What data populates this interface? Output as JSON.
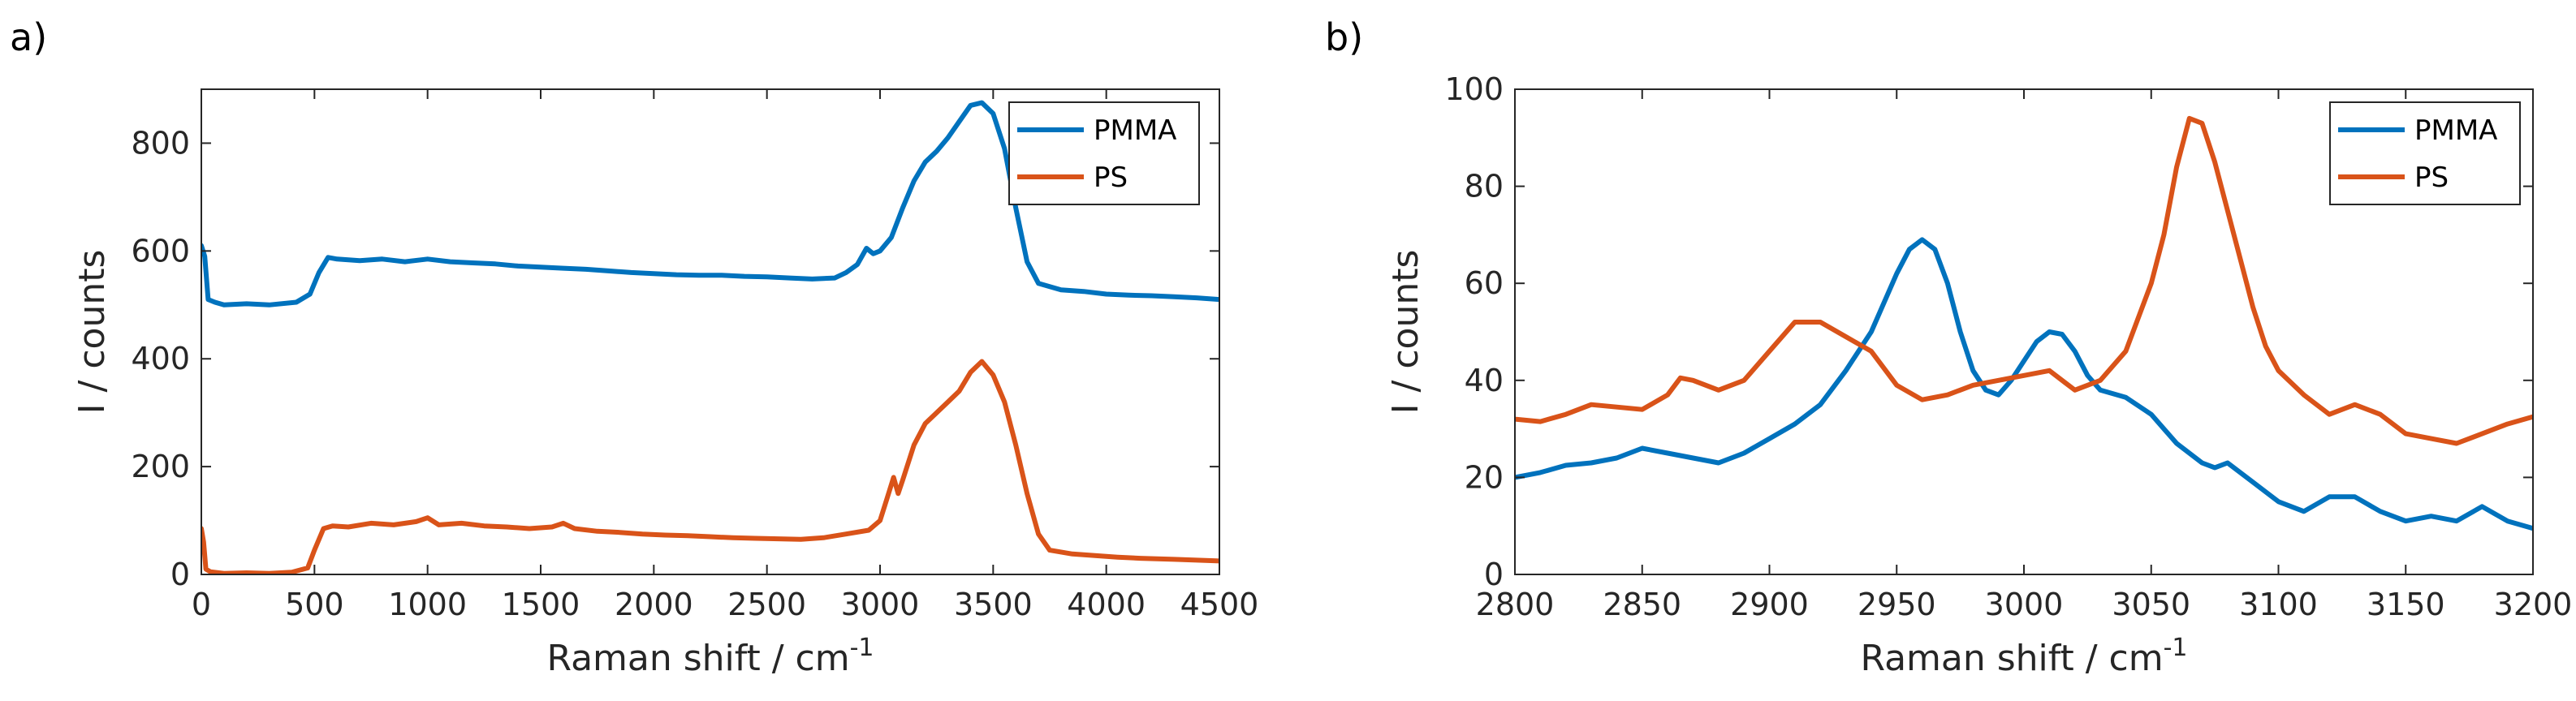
{
  "chart_data": [
    {
      "panel_label": "a)",
      "type": "line",
      "xlabel": "Raman shift / cm",
      "xlabel_sup": "-1",
      "ylabel": "I / counts",
      "xlim": [
        0,
        4500
      ],
      "ylim": [
        0,
        900
      ],
      "xticks": [
        0,
        500,
        1000,
        1500,
        2000,
        2500,
        3000,
        3500,
        4000,
        4500
      ],
      "yticks": [
        0,
        200,
        400,
        600,
        800
      ],
      "legend_position": "top-right",
      "series": [
        {
          "name": "PMMA",
          "color": "#0072BD",
          "points": [
            [
              0,
              610
            ],
            [
              15,
              590
            ],
            [
              30,
              510
            ],
            [
              60,
              505
            ],
            [
              100,
              500
            ],
            [
              200,
              502
            ],
            [
              300,
              500
            ],
            [
              420,
              505
            ],
            [
              480,
              520
            ],
            [
              520,
              560
            ],
            [
              560,
              588
            ],
            [
              600,
              585
            ],
            [
              700,
              582
            ],
            [
              800,
              585
            ],
            [
              900,
              580
            ],
            [
              1000,
              585
            ],
            [
              1100,
              580
            ],
            [
              1200,
              578
            ],
            [
              1300,
              576
            ],
            [
              1400,
              572
            ],
            [
              1500,
              570
            ],
            [
              1600,
              568
            ],
            [
              1700,
              566
            ],
            [
              1800,
              563
            ],
            [
              1900,
              560
            ],
            [
              2000,
              558
            ],
            [
              2100,
              556
            ],
            [
              2200,
              555
            ],
            [
              2300,
              555
            ],
            [
              2400,
              553
            ],
            [
              2500,
              552
            ],
            [
              2600,
              550
            ],
            [
              2700,
              548
            ],
            [
              2800,
              550
            ],
            [
              2850,
              560
            ],
            [
              2900,
              575
            ],
            [
              2940,
              605
            ],
            [
              2970,
              595
            ],
            [
              3000,
              600
            ],
            [
              3050,
              625
            ],
            [
              3100,
              680
            ],
            [
              3150,
              730
            ],
            [
              3200,
              765
            ],
            [
              3250,
              785
            ],
            [
              3300,
              810
            ],
            [
              3350,
              840
            ],
            [
              3400,
              870
            ],
            [
              3450,
              875
            ],
            [
              3500,
              855
            ],
            [
              3550,
              790
            ],
            [
              3600,
              680
            ],
            [
              3650,
              580
            ],
            [
              3700,
              540
            ],
            [
              3800,
              528
            ],
            [
              3900,
              525
            ],
            [
              4000,
              520
            ],
            [
              4100,
              518
            ],
            [
              4200,
              517
            ],
            [
              4300,
              515
            ],
            [
              4400,
              513
            ],
            [
              4500,
              510
            ]
          ]
        },
        {
          "name": "PS",
          "color": "#D95319",
          "points": [
            [
              0,
              85
            ],
            [
              10,
              60
            ],
            [
              20,
              10
            ],
            [
              40,
              5
            ],
            [
              100,
              2
            ],
            [
              200,
              3
            ],
            [
              300,
              2
            ],
            [
              400,
              4
            ],
            [
              470,
              12
            ],
            [
              500,
              45
            ],
            [
              540,
              85
            ],
            [
              580,
              90
            ],
            [
              650,
              88
            ],
            [
              750,
              95
            ],
            [
              850,
              92
            ],
            [
              950,
              98
            ],
            [
              1000,
              105
            ],
            [
              1050,
              92
            ],
            [
              1150,
              95
            ],
            [
              1250,
              90
            ],
            [
              1350,
              88
            ],
            [
              1450,
              85
            ],
            [
              1550,
              88
            ],
            [
              1600,
              95
            ],
            [
              1650,
              85
            ],
            [
              1750,
              80
            ],
            [
              1850,
              78
            ],
            [
              1950,
              75
            ],
            [
              2050,
              73
            ],
            [
              2150,
              72
            ],
            [
              2250,
              70
            ],
            [
              2350,
              68
            ],
            [
              2450,
              67
            ],
            [
              2550,
              66
            ],
            [
              2650,
              65
            ],
            [
              2750,
              68
            ],
            [
              2850,
              75
            ],
            [
              2950,
              82
            ],
            [
              3000,
              100
            ],
            [
              3030,
              140
            ],
            [
              3060,
              180
            ],
            [
              3080,
              150
            ],
            [
              3100,
              175
            ],
            [
              3150,
              240
            ],
            [
              3200,
              280
            ],
            [
              3250,
              300
            ],
            [
              3300,
              320
            ],
            [
              3350,
              340
            ],
            [
              3400,
              375
            ],
            [
              3450,
              395
            ],
            [
              3500,
              370
            ],
            [
              3550,
              320
            ],
            [
              3600,
              240
            ],
            [
              3650,
              150
            ],
            [
              3700,
              75
            ],
            [
              3750,
              45
            ],
            [
              3850,
              38
            ],
            [
              3950,
              35
            ],
            [
              4050,
              32
            ],
            [
              4150,
              30
            ],
            [
              4300,
              28
            ],
            [
              4500,
              25
            ]
          ]
        }
      ]
    },
    {
      "panel_label": "b)",
      "type": "line",
      "xlabel": "Raman shift / cm",
      "xlabel_sup": "-1",
      "ylabel": "I / counts",
      "xlim": [
        2800,
        3200
      ],
      "ylim": [
        0,
        100
      ],
      "xticks": [
        2800,
        2850,
        2900,
        2950,
        3000,
        3050,
        3100,
        3150,
        3200
      ],
      "yticks": [
        0,
        20,
        40,
        60,
        80,
        100
      ],
      "legend_position": "top-right",
      "series": [
        {
          "name": "PMMA",
          "color": "#0072BD",
          "points": [
            [
              2800,
              20
            ],
            [
              2810,
              21
            ],
            [
              2820,
              22.5
            ],
            [
              2830,
              23
            ],
            [
              2840,
              24
            ],
            [
              2850,
              26
            ],
            [
              2860,
              25
            ],
            [
              2870,
              24
            ],
            [
              2880,
              23
            ],
            [
              2890,
              25
            ],
            [
              2900,
              28
            ],
            [
              2910,
              31
            ],
            [
              2920,
              35
            ],
            [
              2930,
              42
            ],
            [
              2940,
              50
            ],
            [
              2950,
              62
            ],
            [
              2955,
              67
            ],
            [
              2960,
              69
            ],
            [
              2965,
              67
            ],
            [
              2970,
              60
            ],
            [
              2975,
              50
            ],
            [
              2980,
              42
            ],
            [
              2985,
              38
            ],
            [
              2990,
              37
            ],
            [
              2995,
              40
            ],
            [
              3000,
              44
            ],
            [
              3005,
              48
            ],
            [
              3010,
              50
            ],
            [
              3015,
              49.5
            ],
            [
              3020,
              46
            ],
            [
              3025,
              41
            ],
            [
              3030,
              38
            ],
            [
              3040,
              36.5
            ],
            [
              3050,
              33
            ],
            [
              3060,
              27
            ],
            [
              3070,
              23
            ],
            [
              3075,
              22
            ],
            [
              3080,
              23
            ],
            [
              3090,
              19
            ],
            [
              3100,
              15
            ],
            [
              3110,
              13
            ],
            [
              3120,
              16
            ],
            [
              3130,
              16
            ],
            [
              3140,
              13
            ],
            [
              3150,
              11
            ],
            [
              3160,
              12
            ],
            [
              3170,
              11
            ],
            [
              3180,
              14
            ],
            [
              3190,
              11
            ],
            [
              3200,
              9.5
            ]
          ]
        },
        {
          "name": "PS",
          "color": "#D95319",
          "points": [
            [
              2800,
              32
            ],
            [
              2810,
              31.5
            ],
            [
              2820,
              33
            ],
            [
              2830,
              35
            ],
            [
              2840,
              34.5
            ],
            [
              2850,
              34
            ],
            [
              2860,
              37
            ],
            [
              2865,
              40.5
            ],
            [
              2870,
              40
            ],
            [
              2880,
              38
            ],
            [
              2890,
              40
            ],
            [
              2900,
              46
            ],
            [
              2910,
              52
            ],
            [
              2920,
              52
            ],
            [
              2930,
              49
            ],
            [
              2940,
              46
            ],
            [
              2950,
              39
            ],
            [
              2960,
              36
            ],
            [
              2970,
              37
            ],
            [
              2980,
              39
            ],
            [
              2990,
              40
            ],
            [
              3000,
              41
            ],
            [
              3010,
              42
            ],
            [
              3020,
              38
            ],
            [
              3030,
              40
            ],
            [
              3040,
              46
            ],
            [
              3050,
              60
            ],
            [
              3055,
              70
            ],
            [
              3060,
              84
            ],
            [
              3065,
              94
            ],
            [
              3070,
              93
            ],
            [
              3075,
              85
            ],
            [
              3080,
              75
            ],
            [
              3085,
              65
            ],
            [
              3090,
              55
            ],
            [
              3095,
              47
            ],
            [
              3100,
              42
            ],
            [
              3110,
              37
            ],
            [
              3120,
              33
            ],
            [
              3130,
              35
            ],
            [
              3140,
              33
            ],
            [
              3150,
              29
            ],
            [
              3160,
              28
            ],
            [
              3170,
              27
            ],
            [
              3180,
              29
            ],
            [
              3190,
              31
            ],
            [
              3200,
              32.5
            ]
          ]
        }
      ]
    }
  ]
}
